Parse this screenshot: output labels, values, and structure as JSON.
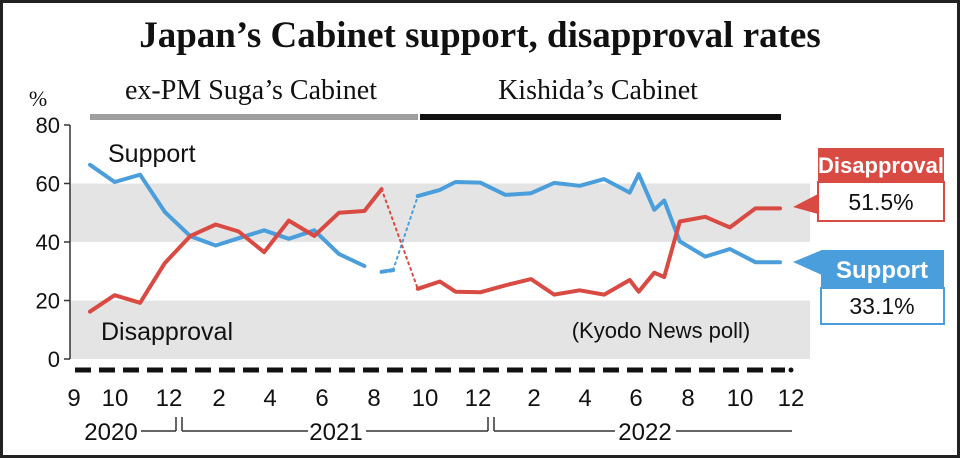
{
  "chart_data": {
    "type": "line",
    "title": "Japan’s Cabinet support, disapproval rates",
    "ylabel": "%",
    "ylim": [
      0,
      80
    ],
    "yticks": [
      0,
      20,
      40,
      60,
      80
    ],
    "shaded_bands": [
      [
        0,
        20
      ],
      [
        40,
        60
      ]
    ],
    "x_tick_labels": [
      "9",
      "10",
      "12",
      "2",
      "4",
      "6",
      "8",
      "10",
      "12",
      "2",
      "4",
      "6",
      "8",
      "10",
      "12"
    ],
    "year_labels": [
      "2020",
      "2021",
      "2022"
    ],
    "periods": [
      {
        "label": "ex-PM Suga’s Cabinet",
        "color": "#9e9e9e",
        "from": "2020-09",
        "to": "2021-09"
      },
      {
        "label": "Kishida’s Cabinet",
        "color": "#111111",
        "from": "2021-10",
        "to": "2022-12"
      }
    ],
    "source_note": "(Kyodo News poll)",
    "series": [
      {
        "name": "Support",
        "color": "#4a9edb",
        "label_in_plot": "Support",
        "end_label": "Support",
        "end_value_text": "33.1%",
        "segments": [
          {
            "x": [
              "2020-09-01",
              "2020-10-01",
              "2020-11-01",
              "2020-12-01",
              "2021-01-01",
              "2021-02-01",
              "2021-03-01",
              "2021-04-01",
              "2021-05-01",
              "2021-06-01",
              "2021-07-01",
              "2021-08-01"
            ],
            "y": [
              66.4,
              60.5,
              63.0,
              50.3,
              42.0,
              38.8,
              41.3,
              44.0,
              41.1,
              44.0,
              35.9,
              31.8
            ]
          },
          {
            "x": [
              "2021-08-22",
              "2021-09-05"
            ],
            "y": [
              29.8,
              30.4
            ],
            "style": "dashed"
          },
          {
            "x": [
              "2021-09-05",
              "2021-10-05"
            ],
            "y": [
              30.4,
              55.7
            ],
            "style": "dotted"
          },
          {
            "x": [
              "2021-10-05",
              "2021-11-01",
              "2021-11-20",
              "2021-12-20",
              "2022-01-20",
              "2022-02-20",
              "2022-03-20",
              "2022-04-20",
              "2022-05-20",
              "2022-06-20",
              "2022-07-01",
              "2022-07-20",
              "2022-08-01",
              "2022-08-20",
              "2022-09-20",
              "2022-10-20",
              "2022-11-20",
              "2022-12-20"
            ],
            "y": [
              55.7,
              57.8,
              60.5,
              60.3,
              56.1,
              56.7,
              60.2,
              59.2,
              61.5,
              56.9,
              63.2,
              51.0,
              54.2,
              40.2,
              35.0,
              37.6,
              33.1,
              33.1
            ]
          }
        ]
      },
      {
        "name": "Disapproval",
        "color": "#d94a43",
        "label_in_plot": "Disapproval",
        "end_label": "Disapproval",
        "end_value_text": "51.5%",
        "segments": [
          {
            "x": [
              "2020-09-01",
              "2020-10-01",
              "2020-11-01",
              "2020-12-01",
              "2021-01-01",
              "2021-02-01",
              "2021-03-01",
              "2021-04-01",
              "2021-05-01",
              "2021-06-01",
              "2021-07-01",
              "2021-08-01",
              "2021-08-22"
            ],
            "y": [
              16.2,
              21.8,
              19.2,
              32.8,
              42.0,
              46.0,
              43.6,
              36.5,
              47.3,
              42.1,
              50.0,
              50.6,
              58.1
            ]
          },
          {
            "x": [
              "2021-08-22",
              "2021-10-05"
            ],
            "y": [
              58.1,
              24.0
            ],
            "style": "dotted"
          },
          {
            "x": [
              "2021-10-05",
              "2021-11-01",
              "2021-11-20",
              "2021-12-20",
              "2022-01-20",
              "2022-02-20",
              "2022-03-20",
              "2022-04-20",
              "2022-05-20",
              "2022-06-20",
              "2022-07-01",
              "2022-07-20",
              "2022-08-01",
              "2022-08-20",
              "2022-09-20",
              "2022-10-20",
              "2022-11-20",
              "2022-12-20"
            ],
            "y": [
              24.0,
              26.5,
              23.0,
              22.8,
              25.2,
              27.3,
              22.0,
              23.5,
              22.0,
              27.0,
              23.0,
              29.5,
              28.0,
              47.0,
              48.6,
              45.0,
              51.5,
              51.5
            ]
          }
        ]
      }
    ]
  }
}
